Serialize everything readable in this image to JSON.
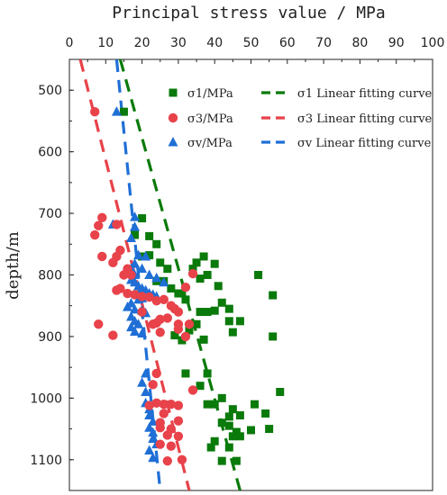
{
  "chart_data": {
    "type": "scatter",
    "title": "",
    "xlabel": "Principal stress value / MPa",
    "ylabel": "depth/m",
    "xlim": [
      0,
      100
    ],
    "ylim": [
      450,
      1150
    ],
    "x_axis_position": "top",
    "y_inverted": true,
    "xticks": [
      "0",
      "10",
      "20",
      "30",
      "40",
      "50",
      "60",
      "70",
      "80",
      "90",
      "100"
    ],
    "yticks": [
      "500",
      "600",
      "700",
      "800",
      "900",
      "1000",
      "1100"
    ],
    "grid": false,
    "legend_placement": "top-right",
    "series": [
      {
        "name": "σ1/MPa",
        "marker": "square",
        "color": "#0a7a0a",
        "points": [
          [
            15,
            535
          ],
          [
            20,
            708
          ],
          [
            22,
            737
          ],
          [
            18,
            735
          ],
          [
            24,
            750
          ],
          [
            25,
            780
          ],
          [
            27,
            790
          ],
          [
            22,
            768
          ],
          [
            20,
            770
          ],
          [
            24,
            810
          ],
          [
            26,
            810
          ],
          [
            28,
            822
          ],
          [
            30,
            830
          ],
          [
            32,
            840
          ],
          [
            31,
            830
          ],
          [
            34,
            790
          ],
          [
            37,
            770
          ],
          [
            35,
            780
          ],
          [
            40,
            782
          ],
          [
            52,
            800
          ],
          [
            56,
            833
          ],
          [
            38,
            800
          ],
          [
            36,
            806
          ],
          [
            41,
            818
          ],
          [
            42,
            845
          ],
          [
            44,
            855
          ],
          [
            40,
            858
          ],
          [
            38,
            860
          ],
          [
            36,
            860
          ],
          [
            44,
            875
          ],
          [
            47,
            875
          ],
          [
            35,
            880
          ],
          [
            33,
            890
          ],
          [
            31,
            906
          ],
          [
            29,
            898
          ],
          [
            37,
            905
          ],
          [
            45,
            893
          ],
          [
            56,
            900
          ],
          [
            32,
            960
          ],
          [
            38,
            960
          ],
          [
            36,
            980
          ],
          [
            40,
            1010
          ],
          [
            38,
            1010
          ],
          [
            42,
            1000
          ],
          [
            45,
            1018
          ],
          [
            51,
            1010
          ],
          [
            58,
            990
          ],
          [
            54,
            1025
          ],
          [
            47,
            1028
          ],
          [
            44,
            1030
          ],
          [
            42,
            1040
          ],
          [
            44,
            1045
          ],
          [
            46,
            1055
          ],
          [
            45,
            1062
          ],
          [
            50,
            1052
          ],
          [
            55,
            1050
          ],
          [
            47,
            1062
          ],
          [
            40,
            1070
          ],
          [
            39,
            1080
          ],
          [
            44,
            1080
          ],
          [
            42,
            1102
          ],
          [
            46,
            1102
          ]
        ]
      },
      {
        "name": "σ3/MPa",
        "marker": "circle",
        "color": "#e8424a",
        "points": [
          [
            7,
            535
          ],
          [
            9,
            707
          ],
          [
            8,
            720
          ],
          [
            7,
            735
          ],
          [
            13,
            718
          ],
          [
            9,
            770
          ],
          [
            12,
            780
          ],
          [
            13,
            770
          ],
          [
            14,
            760
          ],
          [
            16,
            790
          ],
          [
            17,
            800
          ],
          [
            15,
            800
          ],
          [
            14,
            822
          ],
          [
            13,
            825
          ],
          [
            16,
            830
          ],
          [
            18,
            832
          ],
          [
            20,
            835
          ],
          [
            22,
            836
          ],
          [
            24,
            842
          ],
          [
            26,
            840
          ],
          [
            28,
            850
          ],
          [
            29,
            855
          ],
          [
            30,
            860
          ],
          [
            25,
            872
          ],
          [
            24,
            878
          ],
          [
            27,
            870
          ],
          [
            30,
            880
          ],
          [
            30,
            888
          ],
          [
            33,
            880
          ],
          [
            25,
            893
          ],
          [
            23,
            880
          ],
          [
            32,
            900
          ],
          [
            34,
            798
          ],
          [
            32,
            820
          ],
          [
            8,
            880
          ],
          [
            12,
            898
          ],
          [
            20,
            860
          ],
          [
            24,
            960
          ],
          [
            23,
            978
          ],
          [
            34,
            987
          ],
          [
            24,
            1008
          ],
          [
            26,
            1010
          ],
          [
            28,
            1010
          ],
          [
            30,
            1012
          ],
          [
            22,
            1012
          ],
          [
            26,
            1025
          ],
          [
            25,
            1040
          ],
          [
            30,
            1037
          ],
          [
            25,
            1048
          ],
          [
            28,
            1050
          ],
          [
            27,
            1060
          ],
          [
            30,
            1062
          ],
          [
            25,
            1075
          ],
          [
            28,
            1078
          ],
          [
            31,
            1100
          ],
          [
            27,
            1102
          ]
        ]
      },
      {
        "name": "σv/MPa",
        "marker": "triangle",
        "color": "#1f6fd6",
        "points": [
          [
            13,
            535
          ],
          [
            12,
            718
          ],
          [
            18,
            706
          ],
          [
            18,
            722
          ],
          [
            17,
            740
          ],
          [
            19,
            768
          ],
          [
            21,
            770
          ],
          [
            18,
            782
          ],
          [
            17,
            790
          ],
          [
            20,
            790
          ],
          [
            18,
            800
          ],
          [
            17,
            808
          ],
          [
            18,
            812
          ],
          [
            19,
            818
          ],
          [
            20,
            822
          ],
          [
            21,
            825
          ],
          [
            22,
            830
          ],
          [
            23,
            832
          ],
          [
            24,
            835
          ],
          [
            20,
            838
          ],
          [
            19,
            840
          ],
          [
            17,
            846
          ],
          [
            16,
            852
          ],
          [
            18,
            856
          ],
          [
            20,
            858
          ],
          [
            21,
            862
          ],
          [
            17,
            868
          ],
          [
            18,
            875
          ],
          [
            19,
            880
          ],
          [
            17,
            885
          ],
          [
            18,
            892
          ],
          [
            20,
            895
          ],
          [
            22,
            800
          ],
          [
            24,
            805
          ],
          [
            26,
            812
          ],
          [
            21,
            960
          ],
          [
            20,
            975
          ],
          [
            21,
            990
          ],
          [
            21,
            1008
          ],
          [
            22,
            1018
          ],
          [
            22,
            1028
          ],
          [
            23,
            1038
          ],
          [
            22,
            1048
          ],
          [
            23,
            1056
          ],
          [
            23,
            1066
          ],
          [
            24,
            1075
          ],
          [
            22,
            1085
          ],
          [
            23,
            1097
          ]
        ]
      }
    ],
    "fits": [
      {
        "name": "σ1 Linear fitting curve",
        "color": "#0a7a0a",
        "x1": 14,
        "y1": 450,
        "x2": 47,
        "y2": 1150
      },
      {
        "name": "σ3 Linear fitting curve",
        "color": "#e8424a",
        "x1": 3,
        "y1": 450,
        "x2": 33,
        "y2": 1150
      },
      {
        "name": "σv Linear fitting curve",
        "color": "#1f6fd6",
        "x1": 13,
        "y1": 450,
        "x2": 25,
        "y2": 1150
      }
    ]
  }
}
